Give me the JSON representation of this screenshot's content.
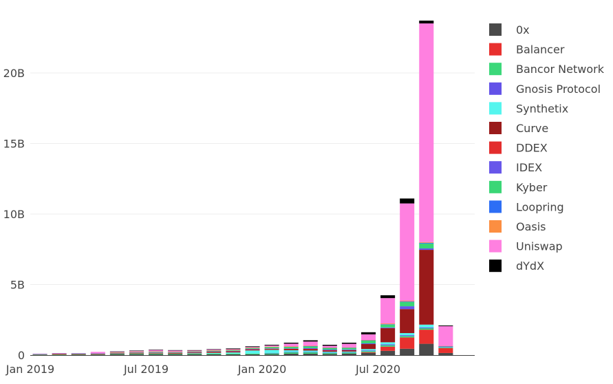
{
  "chart_data": {
    "type": "bar",
    "stacked": true,
    "title": "",
    "xlabel": "",
    "ylabel": "",
    "ylim": [
      0,
      24
    ],
    "yunit_suffix": "B",
    "yticks": [
      0,
      5,
      10,
      15,
      20
    ],
    "ytick_labels": [
      "0",
      "5B",
      "10B",
      "15B",
      "20B"
    ],
    "xtick_labels": [
      {
        "label": "Jan 2019",
        "index": 0
      },
      {
        "label": "Jul 2019",
        "index": 6
      },
      {
        "label": "Jan 2020",
        "index": 12
      },
      {
        "label": "Jul 2020",
        "index": 18
      }
    ],
    "grid": true,
    "legend_position": "right",
    "categories": [
      "2019-01",
      "2019-02",
      "2019-03",
      "2019-04",
      "2019-05",
      "2019-06",
      "2019-07",
      "2019-08",
      "2019-09",
      "2019-10",
      "2019-11",
      "2019-12",
      "2020-01",
      "2020-02",
      "2020-03",
      "2020-04",
      "2020-05",
      "2020-06",
      "2020-07",
      "2020-08",
      "2020-09",
      "2020-10",
      "2020-11"
    ],
    "series": [
      {
        "name": "0x",
        "color": "#4a4a4a",
        "values": [
          0.02,
          0.02,
          0.04,
          0.04,
          0.05,
          0.06,
          0.05,
          0.05,
          0.05,
          0.05,
          0.05,
          0.05,
          0.05,
          0.1,
          0.1,
          0.07,
          0.1,
          0.15,
          0.3,
          0.45,
          0.8,
          0.15,
          0
        ]
      },
      {
        "name": "Balancer",
        "color": "#e8302e",
        "values": [
          0,
          0,
          0,
          0,
          0,
          0,
          0,
          0,
          0,
          0,
          0,
          0,
          0,
          0,
          0,
          0,
          0,
          0.05,
          0.3,
          0.8,
          1.0,
          0.35,
          0
        ]
      },
      {
        "name": "Bancor Network",
        "color": "#3cd87a",
        "values": [
          0.02,
          0.03,
          0.03,
          0.03,
          0.05,
          0.06,
          0.06,
          0.05,
          0.05,
          0.06,
          0.06,
          0.06,
          0.08,
          0.1,
          0.1,
          0.08,
          0.08,
          0.08,
          0.1,
          0.1,
          0.1,
          0.05,
          0
        ]
      },
      {
        "name": "Gnosis Protocol",
        "color": "#6352e8",
        "values": [
          0,
          0,
          0,
          0,
          0,
          0,
          0,
          0,
          0,
          0,
          0,
          0,
          0.02,
          0.02,
          0.02,
          0.02,
          0.02,
          0.05,
          0.06,
          0.06,
          0.06,
          0.02,
          0
        ]
      },
      {
        "name": "Synthetix",
        "color": "#55f5ee",
        "values": [
          0,
          0,
          0,
          0,
          0,
          0,
          0,
          0,
          0.03,
          0.05,
          0.08,
          0.22,
          0.22,
          0.12,
          0.1,
          0.07,
          0.05,
          0.1,
          0.15,
          0.15,
          0.2,
          0.02,
          0
        ]
      },
      {
        "name": "Curve",
        "color": "#9a1a1a",
        "values": [
          0,
          0,
          0,
          0,
          0,
          0.02,
          0.03,
          0.03,
          0.04,
          0.06,
          0.06,
          0.06,
          0.06,
          0.08,
          0.1,
          0.08,
          0.1,
          0.35,
          1.0,
          1.7,
          5.3,
          0,
          0
        ]
      },
      {
        "name": "DDEX",
        "color": "#e32d2d",
        "values": [
          0.03,
          0.06,
          0.03,
          0.03,
          0.02,
          0.02,
          0.02,
          0.02,
          0.02,
          0.02,
          0.02,
          0.02,
          0.02,
          0.02,
          0.02,
          0.02,
          0,
          0,
          0,
          0,
          0,
          0,
          0
        ]
      },
      {
        "name": "IDEX",
        "color": "#6756ea",
        "values": [
          0.02,
          0.02,
          0.03,
          0.03,
          0.03,
          0.03,
          0.03,
          0.03,
          0.03,
          0.03,
          0.03,
          0.03,
          0.03,
          0.03,
          0.05,
          0.05,
          0.05,
          0.05,
          0.05,
          0.2,
          0.1,
          0.02,
          0
        ]
      },
      {
        "name": "Kyber",
        "color": "#3ad676",
        "values": [
          0,
          0,
          0,
          0,
          0.02,
          0.03,
          0.05,
          0.04,
          0.04,
          0.05,
          0.05,
          0.06,
          0.1,
          0.12,
          0.14,
          0.12,
          0.12,
          0.2,
          0.2,
          0.3,
          0.35,
          0.02,
          0
        ]
      },
      {
        "name": "Loopring",
        "color": "#2d6ef5",
        "values": [
          0,
          0,
          0,
          0,
          0,
          0,
          0,
          0,
          0,
          0,
          0,
          0,
          0,
          0,
          0.01,
          0.01,
          0.01,
          0.02,
          0.03,
          0.04,
          0.05,
          0.01,
          0
        ]
      },
      {
        "name": "Oasis",
        "color": "#fc8e41",
        "values": [
          0,
          0,
          0,
          0,
          0.02,
          0.02,
          0.02,
          0.02,
          0.02,
          0.02,
          0.02,
          0.02,
          0.02,
          0.02,
          0.02,
          0.02,
          0.02,
          0.02,
          0.05,
          0.05,
          0.05,
          0.01,
          0
        ]
      },
      {
        "name": "Uniswap",
        "color": "#ff80e0",
        "values": [
          0,
          0,
          0,
          0.1,
          0.05,
          0.05,
          0.1,
          0.08,
          0.04,
          0.05,
          0.05,
          0.05,
          0.08,
          0.2,
          0.3,
          0.12,
          0.25,
          0.4,
          1.8,
          6.9,
          15.5,
          1.4,
          0
        ]
      },
      {
        "name": "dYdX",
        "color": "#000000",
        "values": [
          0,
          0,
          0,
          0,
          0.02,
          0.03,
          0.03,
          0.03,
          0.03,
          0.03,
          0.05,
          0.05,
          0.05,
          0.07,
          0.09,
          0.07,
          0.08,
          0.15,
          0.2,
          0.35,
          0.2,
          0.05,
          0
        ]
      }
    ]
  }
}
